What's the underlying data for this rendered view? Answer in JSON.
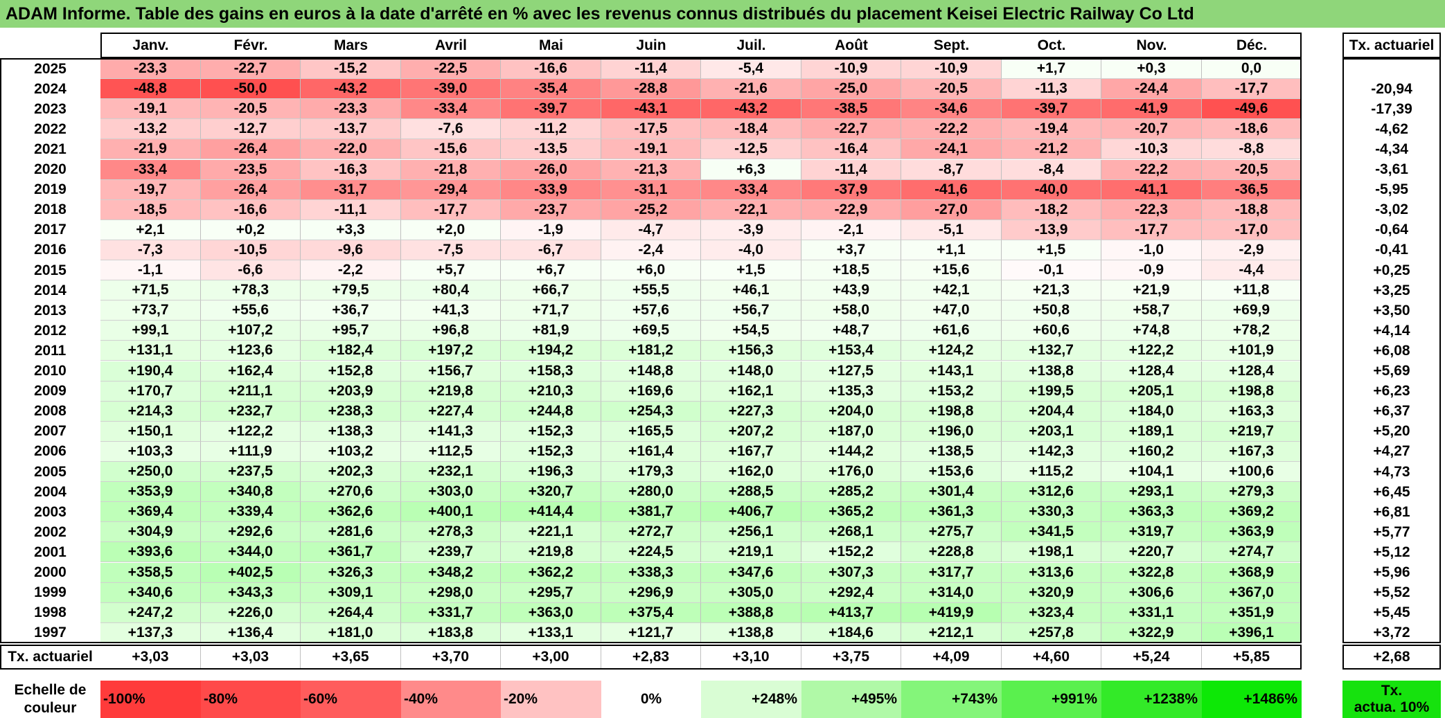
{
  "title": "ADAM Informe. Table des gains en euros à la date d'arrêté en % avec les revenus connus distribués du placement Keisei Electric Railway Co Ltd",
  "months": [
    "Janv.",
    "Févr.",
    "Mars",
    "Avril",
    "Mai",
    "Juin",
    "Juil.",
    "Août",
    "Sept.",
    "Oct.",
    "Nov.",
    "Déc."
  ],
  "rate_header": "Tx. actuariel",
  "rows": [
    {
      "year": "2025",
      "values": [
        "-23,3",
        "-22,7",
        "-15,2",
        "-22,5",
        "-16,6",
        "-11,4",
        "-5,4",
        "-10,9",
        "-10,9",
        "+1,7",
        "+0,3",
        "0,0"
      ],
      "rate": ""
    },
    {
      "year": "2024",
      "values": [
        "-48,8",
        "-50,0",
        "-43,2",
        "-39,0",
        "-35,4",
        "-28,8",
        "-21,6",
        "-25,0",
        "-20,5",
        "-11,3",
        "-24,4",
        "-17,7"
      ],
      "rate": "-20,94"
    },
    {
      "year": "2023",
      "values": [
        "-19,1",
        "-20,5",
        "-23,3",
        "-33,4",
        "-39,7",
        "-43,1",
        "-43,2",
        "-38,5",
        "-34,6",
        "-39,7",
        "-41,9",
        "-49,6"
      ],
      "rate": "-17,39"
    },
    {
      "year": "2022",
      "values": [
        "-13,2",
        "-12,7",
        "-13,7",
        "-7,6",
        "-11,2",
        "-17,5",
        "-18,4",
        "-22,7",
        "-22,2",
        "-19,4",
        "-20,7",
        "-18,6"
      ],
      "rate": "-4,62"
    },
    {
      "year": "2021",
      "values": [
        "-21,9",
        "-26,4",
        "-22,0",
        "-15,6",
        "-13,5",
        "-19,1",
        "-12,5",
        "-16,4",
        "-24,1",
        "-21,2",
        "-10,3",
        "-8,8"
      ],
      "rate": "-4,34"
    },
    {
      "year": "2020",
      "values": [
        "-33,4",
        "-23,5",
        "-16,3",
        "-21,8",
        "-26,0",
        "-21,3",
        "+6,3",
        "-11,4",
        "-8,7",
        "-8,4",
        "-22,2",
        "-20,5"
      ],
      "rate": "-3,61"
    },
    {
      "year": "2019",
      "values": [
        "-19,7",
        "-26,4",
        "-31,7",
        "-29,4",
        "-33,9",
        "-31,1",
        "-33,4",
        "-37,9",
        "-41,6",
        "-40,0",
        "-41,1",
        "-36,5"
      ],
      "rate": "-5,95"
    },
    {
      "year": "2018",
      "values": [
        "-18,5",
        "-16,6",
        "-11,1",
        "-17,7",
        "-23,7",
        "-25,2",
        "-22,1",
        "-22,9",
        "-27,0",
        "-18,2",
        "-22,3",
        "-18,8"
      ],
      "rate": "-3,02"
    },
    {
      "year": "2017",
      "values": [
        "+2,1",
        "+0,2",
        "+3,3",
        "+2,0",
        "-1,9",
        "-4,7",
        "-3,9",
        "-2,1",
        "-5,1",
        "-13,9",
        "-17,7",
        "-17,0"
      ],
      "rate": "-0,64"
    },
    {
      "year": "2016",
      "values": [
        "-7,3",
        "-10,5",
        "-9,6",
        "-7,5",
        "-6,7",
        "-2,4",
        "-4,0",
        "+3,7",
        "+1,1",
        "+1,5",
        "-1,0",
        "-2,9"
      ],
      "rate": "-0,41"
    },
    {
      "year": "2015",
      "values": [
        "-1,1",
        "-6,6",
        "-2,2",
        "+5,7",
        "+6,7",
        "+6,0",
        "+1,5",
        "+18,5",
        "+15,6",
        "-0,1",
        "-0,9",
        "-4,4"
      ],
      "rate": "+0,25"
    },
    {
      "year": "2014",
      "values": [
        "+71,5",
        "+78,3",
        "+79,5",
        "+80,4",
        "+66,7",
        "+55,5",
        "+46,1",
        "+43,9",
        "+42,1",
        "+21,3",
        "+21,9",
        "+11,8"
      ],
      "rate": "+3,25"
    },
    {
      "year": "2013",
      "values": [
        "+73,7",
        "+55,6",
        "+36,7",
        "+41,3",
        "+71,7",
        "+57,6",
        "+56,7",
        "+58,0",
        "+47,0",
        "+50,8",
        "+58,7",
        "+69,9"
      ],
      "rate": "+3,50"
    },
    {
      "year": "2012",
      "values": [
        "+99,1",
        "+107,2",
        "+95,7",
        "+96,8",
        "+81,9",
        "+69,5",
        "+54,5",
        "+48,7",
        "+61,6",
        "+60,6",
        "+74,8",
        "+78,2"
      ],
      "rate": "+4,14"
    },
    {
      "year": "2011",
      "values": [
        "+131,1",
        "+123,6",
        "+182,4",
        "+197,2",
        "+194,2",
        "+181,2",
        "+156,3",
        "+153,4",
        "+124,2",
        "+132,7",
        "+122,2",
        "+101,9"
      ],
      "rate": "+6,08"
    },
    {
      "year": "2010",
      "values": [
        "+190,4",
        "+162,4",
        "+152,8",
        "+156,7",
        "+158,3",
        "+148,8",
        "+148,0",
        "+127,5",
        "+143,1",
        "+138,8",
        "+128,4",
        "+128,4"
      ],
      "rate": "+5,69"
    },
    {
      "year": "2009",
      "values": [
        "+170,7",
        "+211,1",
        "+203,9",
        "+219,8",
        "+210,3",
        "+169,6",
        "+162,1",
        "+135,3",
        "+153,2",
        "+199,5",
        "+205,1",
        "+198,8"
      ],
      "rate": "+6,23"
    },
    {
      "year": "2008",
      "values": [
        "+214,3",
        "+232,7",
        "+238,3",
        "+227,4",
        "+244,8",
        "+254,3",
        "+227,3",
        "+204,0",
        "+198,8",
        "+204,4",
        "+184,0",
        "+163,3"
      ],
      "rate": "+6,37"
    },
    {
      "year": "2007",
      "values": [
        "+150,1",
        "+122,2",
        "+138,3",
        "+141,3",
        "+152,3",
        "+165,5",
        "+207,2",
        "+187,0",
        "+196,0",
        "+203,1",
        "+189,1",
        "+219,7"
      ],
      "rate": "+5,20"
    },
    {
      "year": "2006",
      "values": [
        "+103,3",
        "+111,9",
        "+103,2",
        "+112,5",
        "+152,3",
        "+161,4",
        "+167,7",
        "+144,2",
        "+138,5",
        "+142,3",
        "+160,2",
        "+167,3"
      ],
      "rate": "+4,27"
    },
    {
      "year": "2005",
      "values": [
        "+250,0",
        "+237,5",
        "+202,3",
        "+232,1",
        "+196,3",
        "+179,3",
        "+162,0",
        "+176,0",
        "+153,6",
        "+115,2",
        "+104,1",
        "+100,6"
      ],
      "rate": "+4,73"
    },
    {
      "year": "2004",
      "values": [
        "+353,9",
        "+340,8",
        "+270,6",
        "+303,0",
        "+320,7",
        "+280,0",
        "+288,5",
        "+285,2",
        "+301,4",
        "+312,6",
        "+293,1",
        "+279,3"
      ],
      "rate": "+6,45"
    },
    {
      "year": "2003",
      "values": [
        "+369,4",
        "+339,4",
        "+362,6",
        "+400,1",
        "+414,4",
        "+381,7",
        "+406,7",
        "+365,2",
        "+361,3",
        "+330,3",
        "+363,3",
        "+369,2"
      ],
      "rate": "+6,81"
    },
    {
      "year": "2002",
      "values": [
        "+304,9",
        "+292,6",
        "+281,6",
        "+278,3",
        "+221,1",
        "+272,7",
        "+256,1",
        "+268,1",
        "+275,7",
        "+341,5",
        "+319,7",
        "+363,9"
      ],
      "rate": "+5,77"
    },
    {
      "year": "2001",
      "values": [
        "+393,6",
        "+344,0",
        "+361,7",
        "+239,7",
        "+219,8",
        "+224,5",
        "+219,1",
        "+152,2",
        "+228,8",
        "+198,1",
        "+220,7",
        "+274,7"
      ],
      "rate": "+5,12"
    },
    {
      "year": "2000",
      "values": [
        "+358,5",
        "+402,5",
        "+326,3",
        "+348,2",
        "+362,2",
        "+338,3",
        "+347,6",
        "+307,3",
        "+317,7",
        "+313,6",
        "+322,8",
        "+368,9"
      ],
      "rate": "+5,96"
    },
    {
      "year": "1999",
      "values": [
        "+340,6",
        "+343,3",
        "+309,1",
        "+298,0",
        "+295,7",
        "+296,9",
        "+305,0",
        "+292,4",
        "+314,0",
        "+320,9",
        "+306,6",
        "+367,0"
      ],
      "rate": "+5,52"
    },
    {
      "year": "1998",
      "values": [
        "+247,2",
        "+226,0",
        "+264,4",
        "+331,7",
        "+363,0",
        "+375,4",
        "+388,8",
        "+413,7",
        "+419,9",
        "+323,4",
        "+331,1",
        "+351,9"
      ],
      "rate": "+5,45"
    },
    {
      "year": "1997",
      "values": [
        "+137,3",
        "+136,4",
        "+181,0",
        "+183,8",
        "+133,1",
        "+121,7",
        "+138,8",
        "+184,6",
        "+212,1",
        "+257,8",
        "+322,9",
        "+396,1"
      ],
      "rate": "+3,72"
    }
  ],
  "summary": {
    "label": "Tx. actuariel",
    "values": [
      "+3,03",
      "+3,03",
      "+3,65",
      "+3,70",
      "+3,00",
      "+2,83",
      "+3,10",
      "+3,75",
      "+4,09",
      "+4,60",
      "+5,24",
      "+5,85"
    ],
    "rate": "+2,68"
  },
  "legend": {
    "label_line1": "Echelle de",
    "label_line2": "couleur",
    "steps": [
      {
        "text": "-100%",
        "color": "#ff3b3b"
      },
      {
        "text": "-80%",
        "color": "#ff4a4a"
      },
      {
        "text": "-60%",
        "color": "#ff5c5c"
      },
      {
        "text": "-40%",
        "color": "#ff8a8a"
      },
      {
        "text": "-20%",
        "color": "#ffc2c2"
      },
      {
        "text": "0%",
        "color": "#ffffff"
      },
      {
        "text": "+248%",
        "color": "#d9fdd4"
      },
      {
        "text": "+495%",
        "color": "#b0f9a7"
      },
      {
        "text": "+743%",
        "color": "#84f57a"
      },
      {
        "text": "+991%",
        "color": "#5af04e"
      },
      {
        "text": "+1238%",
        "color": "#33ea28"
      },
      {
        "text": "+1486%",
        "color": "#0de806"
      }
    ],
    "rate_line1": "Tx.",
    "rate_line2": "actua. 10%",
    "rate_color": "#16e20e"
  }
}
